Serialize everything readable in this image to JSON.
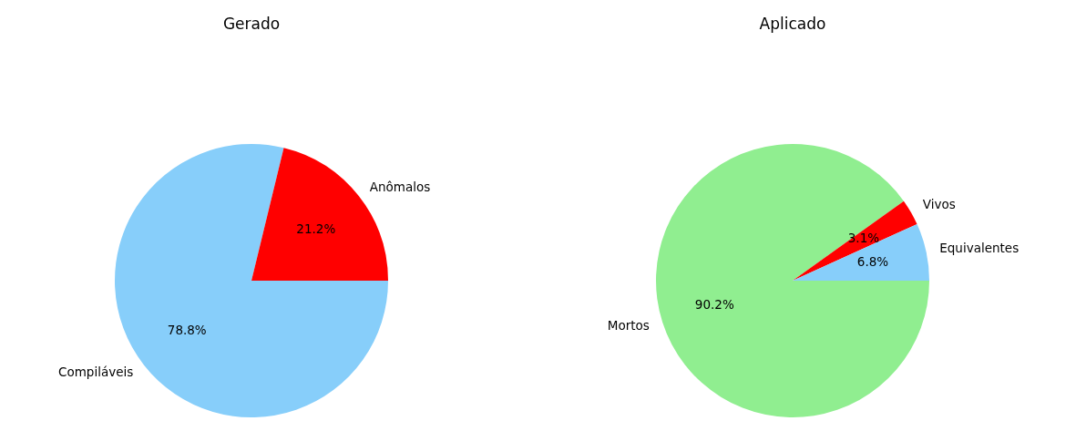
{
  "chart_data": [
    {
      "type": "pie",
      "title": "Gerado",
      "categories": [
        "Compiláveis",
        "Anômalos"
      ],
      "values": [
        78.8,
        21.2
      ],
      "colors": [
        "#87cefa",
        "#ff0000"
      ],
      "value_labels": [
        "78.8%",
        "21.2%"
      ]
    },
    {
      "type": "pie",
      "title": "Aplicado",
      "categories": [
        "Mortos",
        "Vivos",
        "Equivalentes"
      ],
      "values": [
        90.2,
        3.1,
        6.8
      ],
      "colors": [
        "#90ee90",
        "#ff0000",
        "#87cefa"
      ],
      "value_labels": [
        "90.2%",
        "3.1%",
        "6.8%"
      ]
    }
  ]
}
